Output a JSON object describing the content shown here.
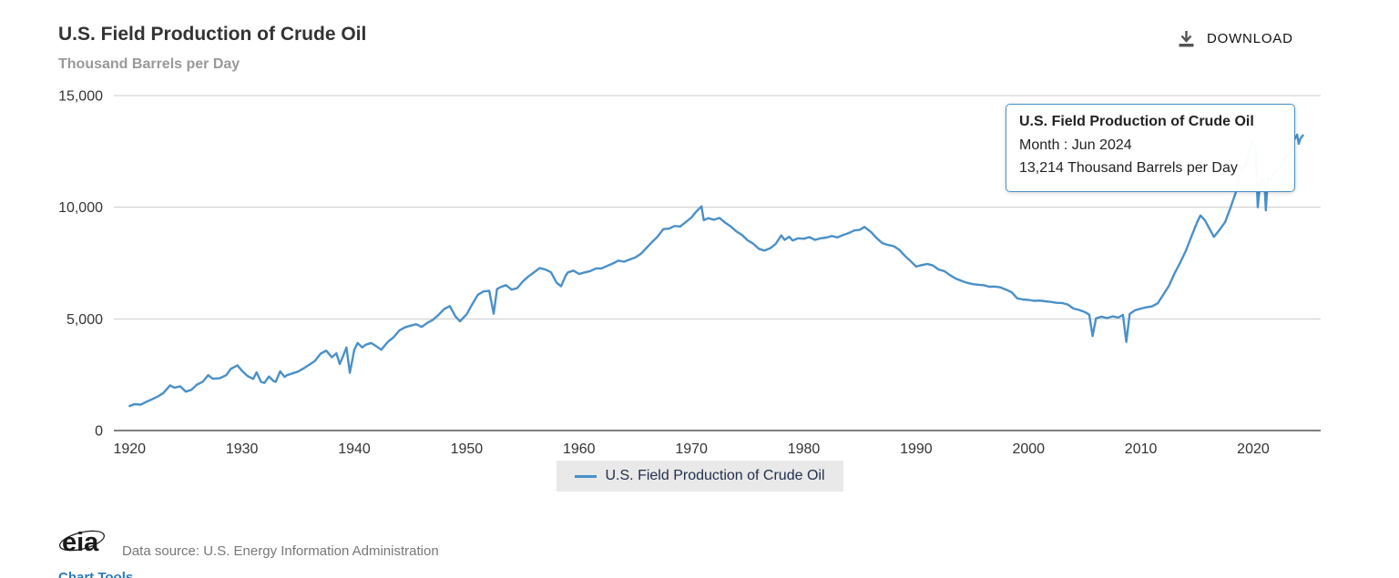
{
  "header": {
    "title": "U.S. Field Production of Crude Oil",
    "subtitle": "Thousand Barrels per Day",
    "download_label": "DOWNLOAD"
  },
  "tooltip": {
    "title": "U.S. Field Production of Crude Oil",
    "month_line": "Month : Jun 2024",
    "value_line": "13,214 Thousand Barrels per Day"
  },
  "legend": {
    "label": "U.S. Field Production of Crude Oil"
  },
  "footer": {
    "logo_text": "eia",
    "source": "Data source: U.S. Energy Information Administration",
    "chart_tools": "Chart Tools"
  },
  "colors": {
    "line": "#4a90c8",
    "gridline": "#cccccc",
    "axis": "#555555",
    "tick_label": "#333333",
    "tooltip_border": "#4a90c8"
  },
  "chart_data": {
    "type": "line",
    "title": "U.S. Field Production of Crude Oil",
    "xlabel": "",
    "ylabel": "Thousand Barrels per Day",
    "xlim": [
      1918.6,
      2026
    ],
    "ylim": [
      0,
      15000
    ],
    "xticks": [
      1920,
      1930,
      1940,
      1950,
      1960,
      1970,
      1980,
      1990,
      2000,
      2010,
      2020
    ],
    "yticks": [
      0,
      5000,
      10000,
      15000
    ],
    "grid": "horizontal",
    "legend_position": "bottom-center",
    "latest_point": {
      "month": "Jun 2024",
      "value": 13214
    },
    "series": [
      {
        "name": "U.S. Field Production of Crude Oil",
        "units": "Thousand Barrels per Day",
        "points": [
          [
            1920.0,
            1097
          ],
          [
            1920.4,
            1180
          ],
          [
            1921.0,
            1160
          ],
          [
            1921.5,
            1290
          ],
          [
            1922.0,
            1400
          ],
          [
            1922.5,
            1520
          ],
          [
            1923.0,
            1680
          ],
          [
            1923.6,
            2020
          ],
          [
            1924.0,
            1920
          ],
          [
            1924.5,
            1980
          ],
          [
            1925.0,
            1740
          ],
          [
            1925.5,
            1820
          ],
          [
            1926.0,
            2060
          ],
          [
            1926.5,
            2180
          ],
          [
            1927.0,
            2480
          ],
          [
            1927.4,
            2320
          ],
          [
            1928.0,
            2340
          ],
          [
            1928.6,
            2480
          ],
          [
            1929.0,
            2760
          ],
          [
            1929.6,
            2920
          ],
          [
            1930.0,
            2680
          ],
          [
            1930.5,
            2440
          ],
          [
            1931.0,
            2310
          ],
          [
            1931.3,
            2610
          ],
          [
            1931.7,
            2180
          ],
          [
            1932.0,
            2130
          ],
          [
            1932.4,
            2420
          ],
          [
            1932.8,
            2220
          ],
          [
            1933.0,
            2180
          ],
          [
            1933.4,
            2650
          ],
          [
            1933.8,
            2400
          ],
          [
            1934.0,
            2480
          ],
          [
            1934.5,
            2560
          ],
          [
            1935.0,
            2640
          ],
          [
            1935.5,
            2790
          ],
          [
            1936.0,
            2950
          ],
          [
            1936.5,
            3120
          ],
          [
            1937.0,
            3440
          ],
          [
            1937.5,
            3580
          ],
          [
            1938.0,
            3280
          ],
          [
            1938.4,
            3460
          ],
          [
            1938.7,
            2980
          ],
          [
            1939.0,
            3340
          ],
          [
            1939.3,
            3720
          ],
          [
            1939.6,
            2580
          ],
          [
            1940.0,
            3620
          ],
          [
            1940.3,
            3920
          ],
          [
            1940.7,
            3720
          ],
          [
            1941.0,
            3840
          ],
          [
            1941.5,
            3920
          ],
          [
            1942.0,
            3760
          ],
          [
            1942.4,
            3620
          ],
          [
            1943.0,
            3980
          ],
          [
            1943.5,
            4180
          ],
          [
            1944.0,
            4480
          ],
          [
            1944.5,
            4620
          ],
          [
            1945.0,
            4695
          ],
          [
            1945.5,
            4760
          ],
          [
            1946.0,
            4640
          ],
          [
            1946.5,
            4820
          ],
          [
            1947.0,
            4960
          ],
          [
            1947.5,
            5180
          ],
          [
            1948.0,
            5440
          ],
          [
            1948.5,
            5570
          ],
          [
            1949.0,
            5110
          ],
          [
            1949.4,
            4890
          ],
          [
            1950.0,
            5210
          ],
          [
            1950.5,
            5660
          ],
          [
            1951.0,
            6080
          ],
          [
            1951.5,
            6230
          ],
          [
            1952.0,
            6260
          ],
          [
            1952.4,
            5230
          ],
          [
            1952.7,
            6340
          ],
          [
            1953.0,
            6420
          ],
          [
            1953.5,
            6510
          ],
          [
            1954.0,
            6310
          ],
          [
            1954.5,
            6380
          ],
          [
            1955.0,
            6680
          ],
          [
            1955.5,
            6900
          ],
          [
            1956.0,
            7090
          ],
          [
            1956.5,
            7280
          ],
          [
            1957.0,
            7210
          ],
          [
            1957.5,
            7090
          ],
          [
            1958.0,
            6620
          ],
          [
            1958.4,
            6460
          ],
          [
            1958.8,
            6920
          ],
          [
            1959.0,
            7080
          ],
          [
            1959.5,
            7160
          ],
          [
            1960.0,
            7010
          ],
          [
            1960.5,
            7080
          ],
          [
            1961.0,
            7140
          ],
          [
            1961.5,
            7260
          ],
          [
            1962.0,
            7260
          ],
          [
            1962.5,
            7370
          ],
          [
            1963.0,
            7480
          ],
          [
            1963.5,
            7610
          ],
          [
            1964.0,
            7560
          ],
          [
            1964.5,
            7660
          ],
          [
            1965.0,
            7750
          ],
          [
            1965.5,
            7910
          ],
          [
            1966.0,
            8180
          ],
          [
            1966.5,
            8440
          ],
          [
            1967.0,
            8690
          ],
          [
            1967.5,
            9020
          ],
          [
            1968.0,
            9040
          ],
          [
            1968.5,
            9160
          ],
          [
            1969.0,
            9140
          ],
          [
            1969.5,
            9340
          ],
          [
            1970.0,
            9540
          ],
          [
            1970.4,
            9790
          ],
          [
            1970.9,
            10040
          ],
          [
            1971.1,
            9420
          ],
          [
            1971.5,
            9510
          ],
          [
            1972.0,
            9440
          ],
          [
            1972.5,
            9520
          ],
          [
            1973.0,
            9310
          ],
          [
            1973.5,
            9140
          ],
          [
            1974.0,
            8920
          ],
          [
            1974.5,
            8760
          ],
          [
            1975.0,
            8520
          ],
          [
            1975.5,
            8370
          ],
          [
            1976.0,
            8140
          ],
          [
            1976.5,
            8060
          ],
          [
            1977.0,
            8160
          ],
          [
            1977.5,
            8360
          ],
          [
            1978.0,
            8740
          ],
          [
            1978.3,
            8540
          ],
          [
            1978.7,
            8680
          ],
          [
            1979.0,
            8510
          ],
          [
            1979.5,
            8610
          ],
          [
            1980.0,
            8590
          ],
          [
            1980.5,
            8660
          ],
          [
            1981.0,
            8540
          ],
          [
            1981.5,
            8610
          ],
          [
            1982.0,
            8640
          ],
          [
            1982.5,
            8710
          ],
          [
            1983.0,
            8650
          ],
          [
            1983.5,
            8760
          ],
          [
            1984.0,
            8840
          ],
          [
            1984.5,
            8960
          ],
          [
            1985.0,
            8990
          ],
          [
            1985.4,
            9120
          ],
          [
            1986.0,
            8880
          ],
          [
            1986.5,
            8610
          ],
          [
            1987.0,
            8390
          ],
          [
            1987.5,
            8310
          ],
          [
            1988.0,
            8260
          ],
          [
            1988.5,
            8090
          ],
          [
            1989.0,
            7820
          ],
          [
            1989.5,
            7590
          ],
          [
            1990.0,
            7340
          ],
          [
            1990.5,
            7410
          ],
          [
            1991.0,
            7460
          ],
          [
            1991.5,
            7390
          ],
          [
            1992.0,
            7210
          ],
          [
            1992.5,
            7140
          ],
          [
            1993.0,
            6960
          ],
          [
            1993.5,
            6810
          ],
          [
            1994.0,
            6710
          ],
          [
            1994.5,
            6620
          ],
          [
            1995.0,
            6560
          ],
          [
            1995.5,
            6530
          ],
          [
            1996.0,
            6510
          ],
          [
            1996.5,
            6440
          ],
          [
            1997.0,
            6450
          ],
          [
            1997.5,
            6410
          ],
          [
            1998.0,
            6310
          ],
          [
            1998.5,
            6190
          ],
          [
            1999.0,
            5920
          ],
          [
            1999.5,
            5870
          ],
          [
            2000.0,
            5850
          ],
          [
            2000.5,
            5810
          ],
          [
            2001.0,
            5820
          ],
          [
            2001.5,
            5790
          ],
          [
            2002.0,
            5760
          ],
          [
            2002.5,
            5720
          ],
          [
            2003.0,
            5710
          ],
          [
            2003.5,
            5640
          ],
          [
            2004.0,
            5460
          ],
          [
            2004.5,
            5400
          ],
          [
            2005.0,
            5310
          ],
          [
            2005.4,
            5190
          ],
          [
            2005.7,
            4230
          ],
          [
            2006.0,
            5020
          ],
          [
            2006.5,
            5100
          ],
          [
            2007.0,
            5040
          ],
          [
            2007.5,
            5110
          ],
          [
            2008.0,
            5060
          ],
          [
            2008.4,
            5180
          ],
          [
            2008.7,
            3970
          ],
          [
            2009.0,
            5220
          ],
          [
            2009.5,
            5390
          ],
          [
            2010.0,
            5460
          ],
          [
            2010.5,
            5520
          ],
          [
            2011.0,
            5560
          ],
          [
            2011.5,
            5700
          ],
          [
            2012.0,
            6090
          ],
          [
            2012.5,
            6480
          ],
          [
            2013.0,
            7040
          ],
          [
            2013.5,
            7520
          ],
          [
            2014.0,
            8050
          ],
          [
            2014.5,
            8690
          ],
          [
            2015.0,
            9320
          ],
          [
            2015.3,
            9630
          ],
          [
            2015.7,
            9420
          ],
          [
            2016.0,
            9140
          ],
          [
            2016.5,
            8670
          ],
          [
            2017.0,
            8990
          ],
          [
            2017.5,
            9340
          ],
          [
            2018.0,
            10010
          ],
          [
            2018.5,
            10750
          ],
          [
            2018.9,
            11850
          ],
          [
            2019.1,
            11680
          ],
          [
            2019.5,
            12150
          ],
          [
            2019.9,
            12970
          ],
          [
            2020.2,
            12780
          ],
          [
            2020.4,
            10000
          ],
          [
            2020.6,
            11010
          ],
          [
            2020.8,
            11250
          ],
          [
            2021.0,
            11120
          ],
          [
            2021.12,
            9860
          ],
          [
            2021.3,
            11320
          ],
          [
            2021.6,
            11230
          ],
          [
            2021.9,
            11620
          ],
          [
            2022.2,
            11670
          ],
          [
            2022.5,
            11870
          ],
          [
            2022.8,
            12110
          ],
          [
            2023.0,
            12330
          ],
          [
            2023.3,
            12440
          ],
          [
            2023.6,
            12980
          ],
          [
            2023.9,
            13250
          ],
          [
            2024.05,
            12840
          ],
          [
            2024.2,
            13080
          ],
          [
            2024.42,
            13214
          ]
        ]
      }
    ]
  }
}
